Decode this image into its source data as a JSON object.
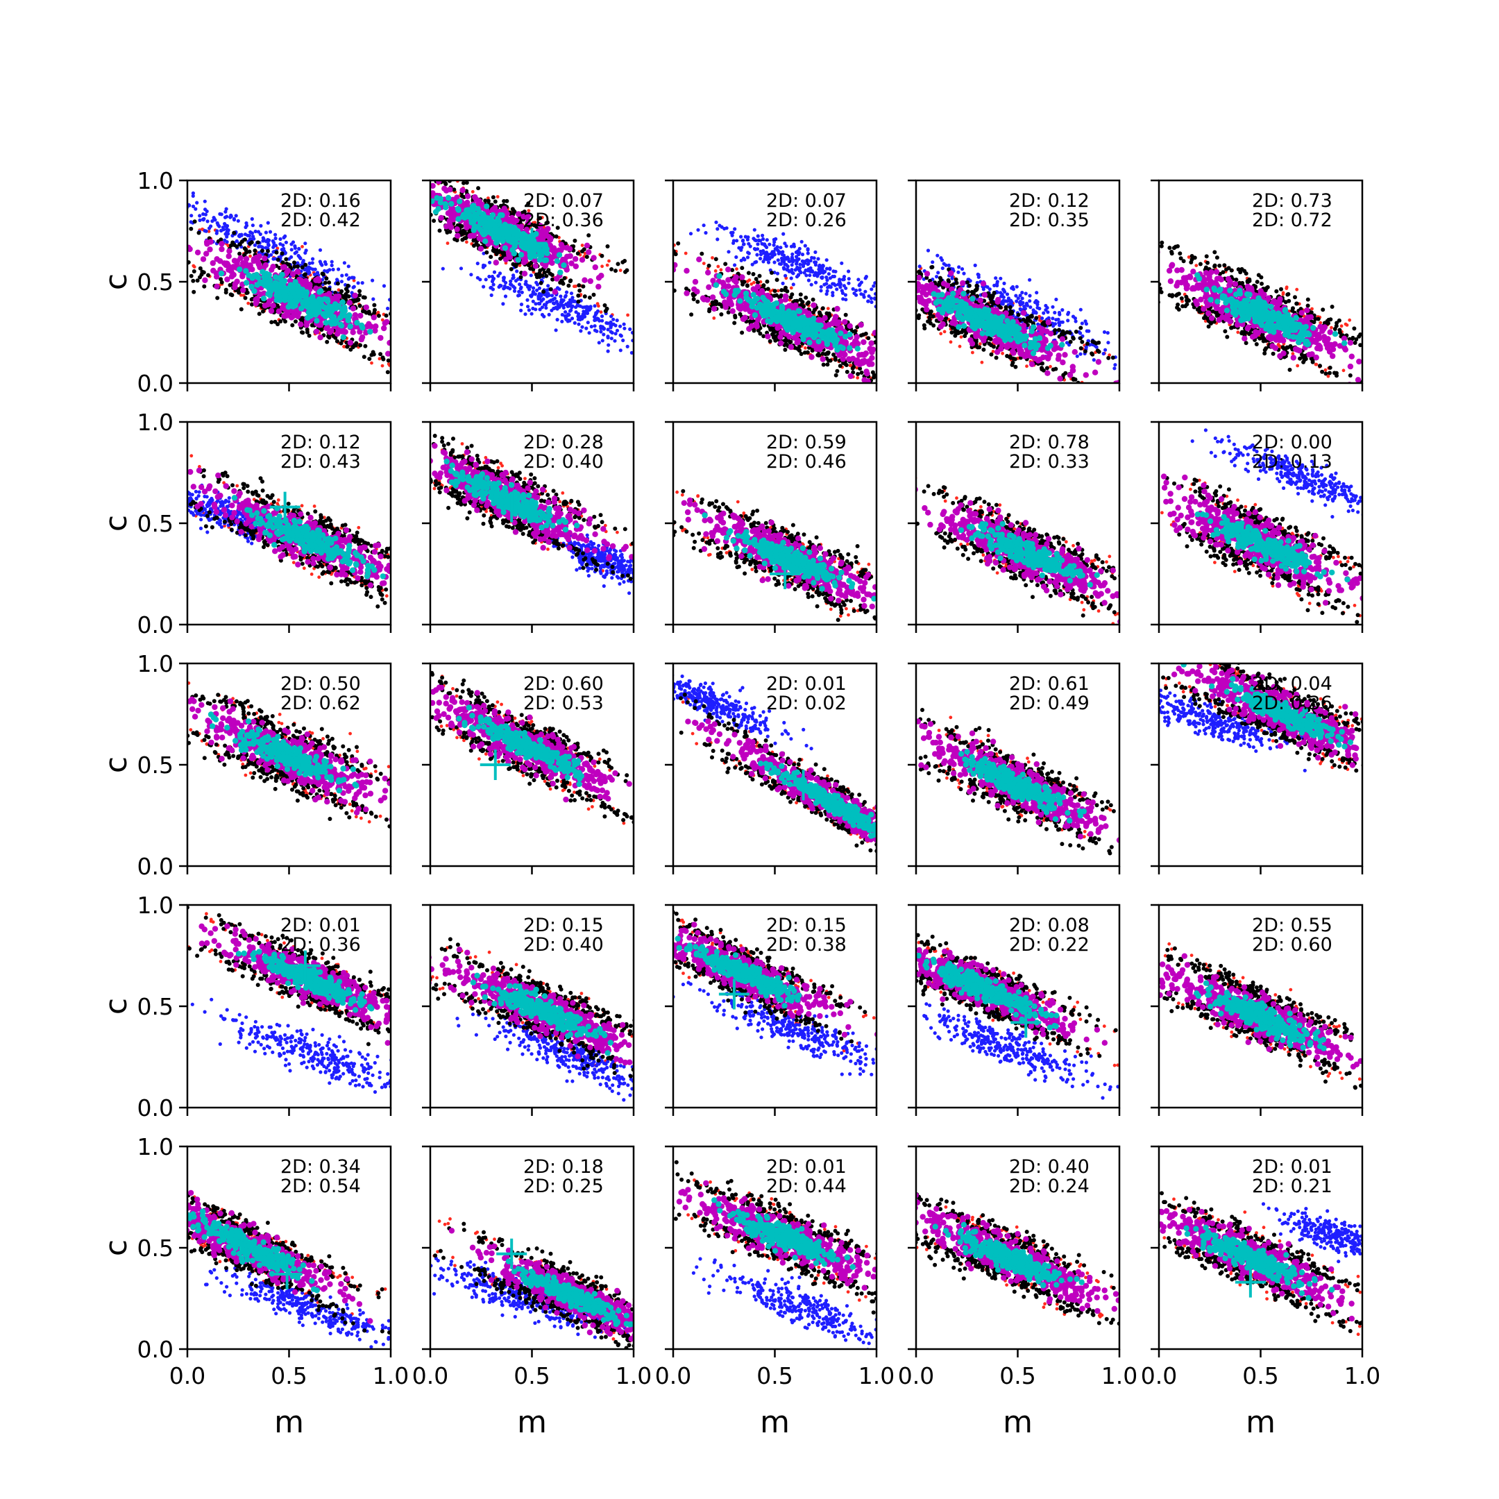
{
  "figure": {
    "rows": 5,
    "cols": 5,
    "xlabel": "m",
    "ylabel": "c",
    "xticks": [
      "0.0",
      "0.5",
      "1.0"
    ],
    "yticks": [
      "0.0",
      "0.5",
      "1.0"
    ],
    "tick_values": [
      0,
      0.5,
      1
    ],
    "colors": {
      "red": "#ff2a1f",
      "black": "#000000",
      "blue": "#1f1fff",
      "magenta": "#bf00bf",
      "cyan": "#00bfbf"
    }
  },
  "chart_data": {
    "type": "scatter",
    "xlim": [
      0,
      1
    ],
    "ylim": [
      0,
      1
    ],
    "xlabel": "m",
    "ylabel": "c",
    "grid": false,
    "series_colors": {
      "outer_red": "#ff2a1f",
      "outer_black": "#000000",
      "alt_blue": "#1f1fff",
      "inner_magenta": "#bf00bf",
      "core_cyan": "#00bfbf"
    },
    "panels": [
      {
        "row": 0,
        "col": 0,
        "ann1": "2D: 0.16",
        "ann2": "2D: 0.42",
        "main": {
          "cx": 0.55,
          "cy": 0.42,
          "slope": -0.47,
          "spread": 0.09
        },
        "blue": {
          "cx": 0.38,
          "cy": 0.68,
          "slope": -0.5,
          "spread": 0.06,
          "len": 0.75
        },
        "cross": null
      },
      {
        "row": 0,
        "col": 1,
        "ann1": "2D: 0.07",
        "ann2": "2D: 0.36",
        "main": {
          "cx": 0.35,
          "cy": 0.75,
          "slope": -0.5,
          "spread": 0.08
        },
        "blue": {
          "cx": 0.65,
          "cy": 0.38,
          "slope": -0.45,
          "spread": 0.06,
          "len": 0.6
        },
        "cross": [
          0.5,
          0.69
        ]
      },
      {
        "row": 0,
        "col": 2,
        "ann1": "2D: 0.07",
        "ann2": "2D: 0.26",
        "main": {
          "cx": 0.6,
          "cy": 0.3,
          "slope": -0.45,
          "spread": 0.08
        },
        "blue": {
          "cx": 0.62,
          "cy": 0.58,
          "slope": -0.4,
          "spread": 0.06,
          "len": 0.55
        },
        "cross": null
      },
      {
        "row": 0,
        "col": 3,
        "ann1": "2D: 0.12",
        "ann2": "2D: 0.35",
        "main": {
          "cx": 0.35,
          "cy": 0.3,
          "slope": -0.45,
          "spread": 0.08
        },
        "blue": {
          "cx": 0.45,
          "cy": 0.4,
          "slope": -0.45,
          "spread": 0.07,
          "len": 0.75
        },
        "cross": null
      },
      {
        "row": 0,
        "col": 4,
        "ann1": "2D: 0.73",
        "ann2": "2D: 0.72",
        "main": {
          "cx": 0.5,
          "cy": 0.34,
          "slope": -0.48,
          "spread": 0.09
        },
        "blue": null,
        "cross": null
      },
      {
        "row": 1,
        "col": 0,
        "ann1": "2D: 0.12",
        "ann2": "2D: 0.43",
        "main": {
          "cx": 0.6,
          "cy": 0.42,
          "slope": -0.45,
          "spread": 0.08
        },
        "blue": {
          "cx": 0.18,
          "cy": 0.54,
          "slope": -0.35,
          "spread": 0.05,
          "len": 0.4
        },
        "cross": [
          0.48,
          0.58
        ]
      },
      {
        "row": 1,
        "col": 1,
        "ann1": "2D: 0.28",
        "ann2": "2D: 0.40",
        "main": {
          "cx": 0.38,
          "cy": 0.62,
          "slope": -0.5,
          "spread": 0.08
        },
        "blue": {
          "cx": 0.85,
          "cy": 0.32,
          "slope": -0.4,
          "spread": 0.05,
          "len": 0.3
        },
        "cross": [
          0.4,
          0.58
        ]
      },
      {
        "row": 1,
        "col": 2,
        "ann1": "2D: 0.59",
        "ann2": "2D: 0.46",
        "main": {
          "cx": 0.58,
          "cy": 0.32,
          "slope": -0.45,
          "spread": 0.08
        },
        "blue": null,
        "cross": [
          0.55,
          0.25
        ]
      },
      {
        "row": 1,
        "col": 3,
        "ann1": "2D: 0.78",
        "ann2": "2D: 0.33",
        "main": {
          "cx": 0.55,
          "cy": 0.35,
          "slope": -0.45,
          "spread": 0.08
        },
        "blue": null,
        "cross": null
      },
      {
        "row": 1,
        "col": 4,
        "ann1": "2D: 0.00",
        "ann2": "2D: 0.13",
        "main": {
          "cx": 0.5,
          "cy": 0.4,
          "slope": -0.48,
          "spread": 0.09
        },
        "blue": {
          "cx": 0.7,
          "cy": 0.73,
          "slope": -0.4,
          "spread": 0.05,
          "len": 0.55
        },
        "cross": null
      },
      {
        "row": 2,
        "col": 0,
        "ann1": "2D: 0.50",
        "ann2": "2D: 0.62",
        "main": {
          "cx": 0.48,
          "cy": 0.55,
          "slope": -0.45,
          "spread": 0.09
        },
        "blue": null,
        "cross": null
      },
      {
        "row": 2,
        "col": 1,
        "ann1": "2D: 0.60",
        "ann2": "2D: 0.53",
        "main": {
          "cx": 0.45,
          "cy": 0.6,
          "slope": -0.5,
          "spread": 0.08
        },
        "blue": null,
        "cross": [
          0.32,
          0.5
        ]
      },
      {
        "row": 2,
        "col": 2,
        "ann1": "2D: 0.01",
        "ann2": "2D: 0.02",
        "main": {
          "cx": 0.8,
          "cy": 0.3,
          "slope": -0.6,
          "spread": 0.06,
          "len": 0.45
        },
        "blue": {
          "cx": 0.2,
          "cy": 0.8,
          "slope": -0.45,
          "spread": 0.05,
          "len": 0.45
        },
        "cross": [
          0.64,
          0.4
        ]
      },
      {
        "row": 2,
        "col": 3,
        "ann1": "2D: 0.61",
        "ann2": "2D: 0.49",
        "main": {
          "cx": 0.5,
          "cy": 0.4,
          "slope": -0.48,
          "spread": 0.08
        },
        "blue": null,
        "cross": null
      },
      {
        "row": 2,
        "col": 4,
        "ann1": "2D: 0.04",
        "ann2": "2D: 0.36",
        "main": {
          "cx": 0.62,
          "cy": 0.75,
          "slope": -0.45,
          "spread": 0.08
        },
        "blue": {
          "cx": 0.25,
          "cy": 0.72,
          "slope": -0.3,
          "spread": 0.06,
          "len": 0.5
        },
        "cross": null
      },
      {
        "row": 3,
        "col": 0,
        "ann1": "2D: 0.01",
        "ann2": "2D: 0.36",
        "main": {
          "cx": 0.62,
          "cy": 0.62,
          "slope": -0.45,
          "spread": 0.07
        },
        "blue": {
          "cx": 0.65,
          "cy": 0.25,
          "slope": -0.4,
          "spread": 0.06,
          "len": 0.7
        },
        "cross": [
          0.58,
          0.7
        ]
      },
      {
        "row": 3,
        "col": 1,
        "ann1": "2D: 0.15",
        "ann2": "2D: 0.40",
        "main": {
          "cx": 0.55,
          "cy": 0.48,
          "slope": -0.45,
          "spread": 0.08
        },
        "blue": {
          "cx": 0.7,
          "cy": 0.25,
          "slope": -0.4,
          "spread": 0.06,
          "len": 0.6
        },
        "cross": null
      },
      {
        "row": 3,
        "col": 2,
        "ann1": "2D: 0.15",
        "ann2": "2D: 0.38",
        "main": {
          "cx": 0.35,
          "cy": 0.66,
          "slope": -0.48,
          "spread": 0.07
        },
        "blue": {
          "cx": 0.62,
          "cy": 0.38,
          "slope": -0.4,
          "spread": 0.06,
          "len": 0.6
        },
        "cross": [
          0.3,
          0.56
        ]
      },
      {
        "row": 3,
        "col": 3,
        "ann1": "2D: 0.08",
        "ann2": "2D: 0.22",
        "main": {
          "cx": 0.35,
          "cy": 0.58,
          "slope": -0.45,
          "spread": 0.07
        },
        "blue": {
          "cx": 0.45,
          "cy": 0.3,
          "slope": -0.4,
          "spread": 0.06,
          "len": 0.55
        },
        "cross": [
          0.54,
          0.42
        ]
      },
      {
        "row": 3,
        "col": 4,
        "ann1": "2D: 0.55",
        "ann2": "2D: 0.60",
        "main": {
          "cx": 0.5,
          "cy": 0.45,
          "slope": -0.45,
          "spread": 0.08
        },
        "blue": null,
        "cross": null
      },
      {
        "row": 4,
        "col": 0,
        "ann1": "2D: 0.34",
        "ann2": "2D: 0.54",
        "main": {
          "cx": 0.3,
          "cy": 0.5,
          "slope": -0.5,
          "spread": 0.07
        },
        "blue": {
          "cx": 0.6,
          "cy": 0.2,
          "slope": -0.35,
          "spread": 0.05,
          "len": 0.6
        },
        "cross": [
          0.49,
          0.37
        ]
      },
      {
        "row": 4,
        "col": 1,
        "ann1": "2D: 0.18",
        "ann2": "2D: 0.25",
        "main": {
          "cx": 0.7,
          "cy": 0.26,
          "slope": -0.45,
          "spread": 0.07
        },
        "blue": {
          "cx": 0.45,
          "cy": 0.25,
          "slope": -0.35,
          "spread": 0.06,
          "len": 0.6
        },
        "cross": [
          0.4,
          0.47
        ]
      },
      {
        "row": 4,
        "col": 2,
        "ann1": "2D: 0.01",
        "ann2": "2D: 0.44",
        "main": {
          "cx": 0.55,
          "cy": 0.55,
          "slope": -0.42,
          "spread": 0.08
        },
        "blue": {
          "cx": 0.65,
          "cy": 0.2,
          "slope": -0.4,
          "spread": 0.06,
          "len": 0.65
        },
        "cross": null
      },
      {
        "row": 4,
        "col": 3,
        "ann1": "2D: 0.40",
        "ann2": "2D: 0.24",
        "main": {
          "cx": 0.45,
          "cy": 0.45,
          "slope": -0.45,
          "spread": 0.08
        },
        "blue": null,
        "cross": null
      },
      {
        "row": 4,
        "col": 4,
        "ann1": "2D: 0.01",
        "ann2": "2D: 0.21",
        "main": {
          "cx": 0.45,
          "cy": 0.45,
          "slope": -0.45,
          "spread": 0.08
        },
        "blue": {
          "cx": 0.9,
          "cy": 0.55,
          "slope": -0.3,
          "spread": 0.05,
          "len": 0.4
        },
        "cross": [
          0.45,
          0.33
        ]
      }
    ]
  }
}
